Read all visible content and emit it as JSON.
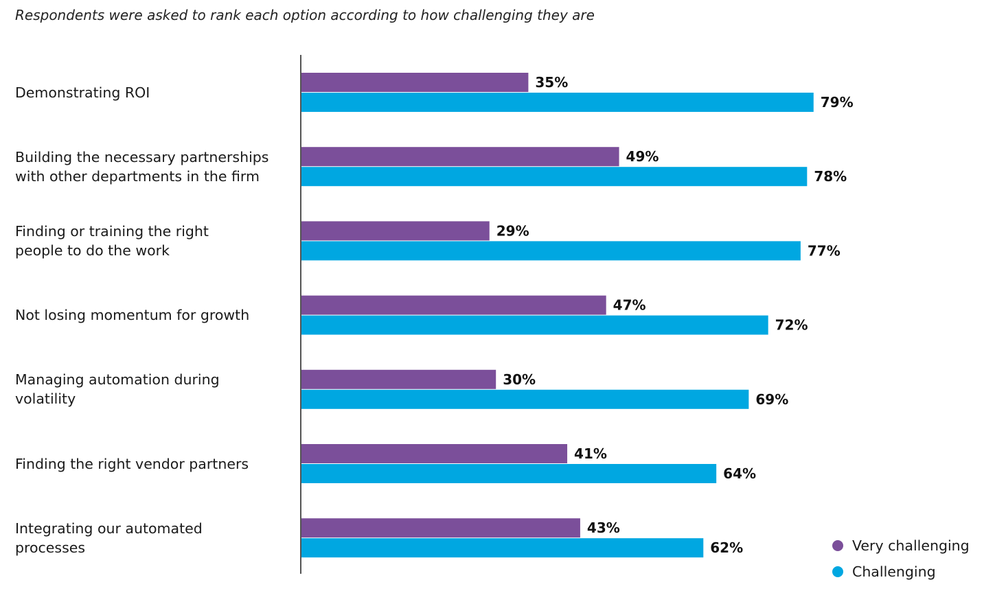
{
  "subtitle": "Respondents were asked to rank each option according to how challenging they are",
  "chart_data": {
    "type": "bar",
    "orientation": "horizontal",
    "title": "",
    "subtitle": "Respondents were asked to rank each option according to how challenging they are",
    "xlabel": "",
    "ylabel": "",
    "xlim": [
      0,
      100
    ],
    "grid": false,
    "legend_position": "bottom-right",
    "value_suffix": "%",
    "categories": [
      "Demonstrating ROI",
      "Building the necessary partnerships with other departments in the firm",
      "Finding or training the right people to do the work",
      "Not losing momentum for growth",
      "Managing automation during volatility",
      "Finding the right vendor partners",
      "Integrating our automated processes"
    ],
    "category_lines": [
      [
        "Demonstrating ROI"
      ],
      [
        "Building the necessary partnerships",
        "with other departments in the firm"
      ],
      [
        "Finding or training the right",
        "people to do the work"
      ],
      [
        "Not losing momentum for growth"
      ],
      [
        "Managing automation during",
        "volatility"
      ],
      [
        "Finding the right vendor partners"
      ],
      [
        "Integrating our automated",
        "processes"
      ]
    ],
    "series": [
      {
        "name": "Very challenging",
        "color": "#7b4f9a",
        "values": [
          35,
          49,
          29,
          47,
          30,
          41,
          43
        ]
      },
      {
        "name": "Challenging",
        "color": "#00a7e1",
        "values": [
          79,
          78,
          77,
          72,
          69,
          64,
          62
        ]
      }
    ]
  }
}
